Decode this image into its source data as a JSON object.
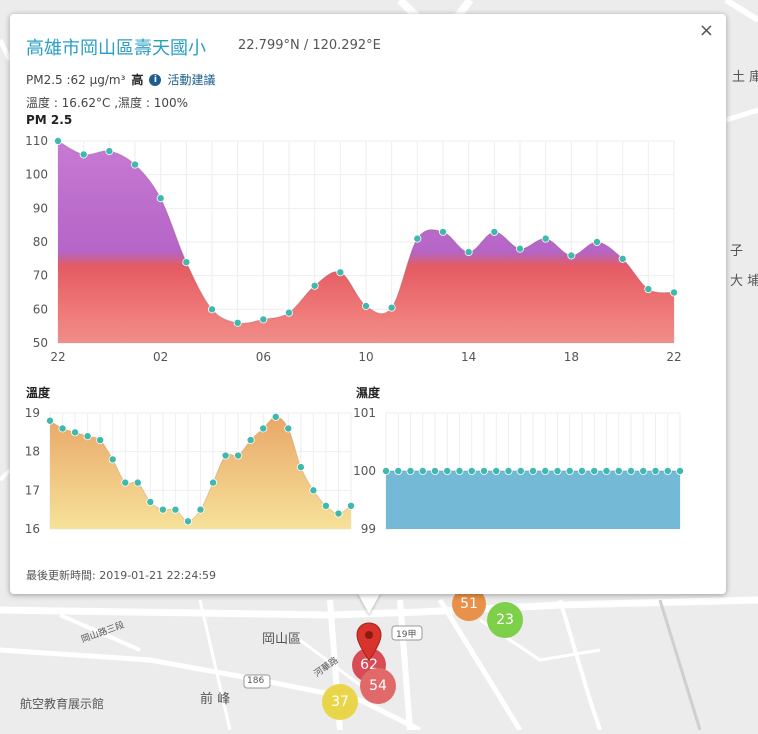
{
  "popup": {
    "title": "高雄市岡山區壽天國小",
    "coords": "22.799°N / 120.292°E",
    "pm_label": "PM2.5 :62 μg/m³",
    "pm_level": "高",
    "advice_link": "活動建議",
    "weather": "溫度 : 16.62°C ,濕度 : 100%",
    "close": "×",
    "pm_chart_title": "PM 2.5",
    "temp_chart_title": "溫度",
    "hum_chart_title": "濕度",
    "updated": "最後更新時間: 2019-01-21 22:24:59"
  },
  "map": {
    "labels": [
      {
        "text": "岡山區"
      },
      {
        "text": "前 峰"
      },
      {
        "text": "航空教育展示館"
      },
      {
        "text": "土 庫"
      },
      {
        "text": "子"
      },
      {
        "text": "大 埔"
      },
      {
        "text": "19甲"
      },
      {
        "text": "186"
      },
      {
        "text": "岡山路三段"
      },
      {
        "text": "河華路"
      }
    ],
    "bubbles": [
      {
        "value": "51",
        "color": "#e8914a"
      },
      {
        "value": "23",
        "color": "#7ed04a"
      },
      {
        "value": "62",
        "color": "#d94b55"
      },
      {
        "value": "54",
        "color": "#e06a6a"
      },
      {
        "value": "37",
        "color": "#e9d54a"
      }
    ]
  },
  "chart_data": [
    {
      "type": "area",
      "title": "PM 2.5",
      "x_ticks": [
        "22",
        "02",
        "06",
        "10",
        "14",
        "18",
        "22"
      ],
      "y_ticks": [
        50,
        60,
        70,
        80,
        90,
        100,
        110
      ],
      "ylim": [
        50,
        110
      ],
      "values": [
        110,
        106,
        107,
        103,
        93,
        74,
        60,
        56,
        57,
        59,
        67,
        71,
        61,
        60.5,
        81,
        83,
        77,
        83,
        78,
        81,
        76,
        80,
        75,
        66,
        65
      ],
      "point_color": "#3fb8ad",
      "grid": true
    },
    {
      "type": "area",
      "title": "溫度",
      "y_ticks": [
        16,
        17,
        18,
        19
      ],
      "ylim": [
        16,
        19
      ],
      "values": [
        18.8,
        18.6,
        18.5,
        18.4,
        18.3,
        17.8,
        17.2,
        17.2,
        16.7,
        16.5,
        16.5,
        16.2,
        16.5,
        17.2,
        17.9,
        17.9,
        18.3,
        18.6,
        18.9,
        18.6,
        17.6,
        17.0,
        16.6,
        16.4,
        16.6
      ],
      "point_color": "#3fb8ad",
      "fill_top": "#e9a567",
      "fill_bottom": "#f6e29a",
      "grid": true
    },
    {
      "type": "area",
      "title": "濕度",
      "y_ticks": [
        99,
        100,
        101
      ],
      "ylim": [
        99,
        101
      ],
      "values": [
        100,
        100,
        100,
        100,
        100,
        100,
        100,
        100,
        100,
        100,
        100,
        100,
        100,
        100,
        100,
        100,
        100,
        100,
        100,
        100,
        100,
        100,
        100,
        100,
        100
      ],
      "point_color": "#3fb8ad",
      "fill": "#74b9d6",
      "grid": true
    }
  ]
}
